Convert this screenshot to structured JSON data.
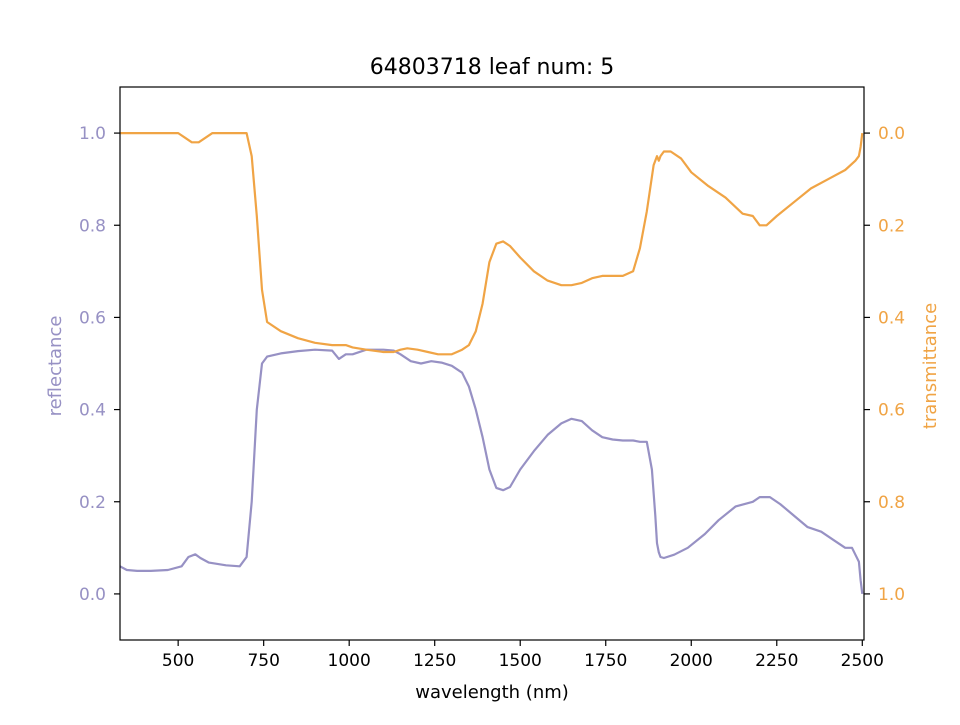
{
  "chart_data": {
    "type": "line",
    "title": "64803718 leaf num: 5",
    "xlabel": "wavelength (nm)",
    "ylabel": "reflectance",
    "ylabel_right": "transmittance",
    "xlim": [
      330,
      2505
    ],
    "ylim": [
      -0.1,
      1.1
    ],
    "ylim_right": [
      1.1,
      -0.1
    ],
    "x_ticks": [
      500,
      750,
      1000,
      1250,
      1500,
      1750,
      2000,
      2250,
      2500
    ],
    "y_ticks": [
      0.0,
      0.2,
      0.4,
      0.6,
      0.8,
      1.0
    ],
    "y_ticks_right": [
      0.0,
      0.2,
      0.4,
      0.6,
      0.8,
      1.0
    ],
    "grid": false,
    "colors": {
      "reflectance": "#9791c4",
      "transmittance": "#f0a445",
      "axis": "#000000"
    },
    "series": [
      {
        "key": "reflectance",
        "axis": "left",
        "x": [
          330,
          350,
          380,
          420,
          470,
          510,
          530,
          550,
          565,
          590,
          640,
          680,
          700,
          715,
          730,
          745,
          760,
          800,
          850,
          900,
          950,
          970,
          990,
          1010,
          1050,
          1100,
          1130,
          1150,
          1180,
          1210,
          1240,
          1270,
          1300,
          1330,
          1350,
          1370,
          1390,
          1410,
          1430,
          1450,
          1470,
          1500,
          1540,
          1580,
          1620,
          1650,
          1680,
          1710,
          1740,
          1770,
          1800,
          1830,
          1850,
          1870,
          1885,
          1895,
          1900,
          1905,
          1910,
          1920,
          1950,
          1990,
          2040,
          2080,
          2130,
          2180,
          2200,
          2230,
          2260,
          2300,
          2340,
          2380,
          2420,
          2450,
          2470,
          2480,
          2490,
          2495,
          2500
        ],
        "y": [
          0.06,
          0.052,
          0.05,
          0.05,
          0.052,
          0.06,
          0.08,
          0.086,
          0.078,
          0.068,
          0.062,
          0.06,
          0.08,
          0.2,
          0.4,
          0.5,
          0.515,
          0.522,
          0.527,
          0.53,
          0.528,
          0.51,
          0.52,
          0.52,
          0.53,
          0.53,
          0.528,
          0.52,
          0.505,
          0.5,
          0.505,
          0.502,
          0.495,
          0.48,
          0.45,
          0.4,
          0.34,
          0.27,
          0.23,
          0.225,
          0.232,
          0.27,
          0.31,
          0.345,
          0.37,
          0.38,
          0.375,
          0.355,
          0.34,
          0.335,
          0.333,
          0.333,
          0.33,
          0.33,
          0.27,
          0.17,
          0.11,
          0.09,
          0.08,
          0.078,
          0.085,
          0.1,
          0.13,
          0.16,
          0.19,
          0.2,
          0.21,
          0.21,
          0.195,
          0.17,
          0.145,
          0.135,
          0.115,
          0.1,
          0.1,
          0.085,
          0.07,
          0.03,
          0.0
        ]
      },
      {
        "key": "transmittance",
        "axis": "right",
        "x": [
          330,
          350,
          380,
          420,
          470,
          500,
          520,
          540,
          560,
          600,
          650,
          680,
          700,
          715,
          730,
          745,
          760,
          800,
          850,
          900,
          950,
          970,
          990,
          1010,
          1050,
          1100,
          1130,
          1150,
          1170,
          1200,
          1230,
          1260,
          1300,
          1330,
          1350,
          1370,
          1390,
          1410,
          1430,
          1450,
          1470,
          1500,
          1540,
          1580,
          1620,
          1650,
          1680,
          1710,
          1740,
          1770,
          1800,
          1830,
          1850,
          1870,
          1880,
          1890,
          1900,
          1905,
          1910,
          1920,
          1940,
          1970,
          2000,
          2050,
          2100,
          2150,
          2180,
          2200,
          2220,
          2250,
          2300,
          2350,
          2400,
          2450,
          2480,
          2490,
          2495,
          2500
        ],
        "y": [
          0.0,
          0.0,
          0.0,
          0.0,
          0.0,
          0.0,
          0.01,
          0.02,
          0.02,
          0.0,
          0.0,
          0.0,
          0.0,
          0.05,
          0.18,
          0.34,
          0.41,
          0.43,
          0.445,
          0.455,
          0.46,
          0.46,
          0.46,
          0.465,
          0.47,
          0.475,
          0.475,
          0.47,
          0.467,
          0.47,
          0.475,
          0.48,
          0.48,
          0.47,
          0.46,
          0.43,
          0.37,
          0.28,
          0.24,
          0.235,
          0.245,
          0.27,
          0.3,
          0.32,
          0.33,
          0.33,
          0.325,
          0.315,
          0.31,
          0.31,
          0.31,
          0.3,
          0.25,
          0.17,
          0.12,
          0.07,
          0.05,
          0.06,
          0.05,
          0.04,
          0.04,
          0.055,
          0.085,
          0.115,
          0.14,
          0.175,
          0.18,
          0.2,
          0.2,
          0.18,
          0.15,
          0.12,
          0.1,
          0.08,
          0.06,
          0.05,
          0.03,
          0.0
        ]
      }
    ]
  }
}
